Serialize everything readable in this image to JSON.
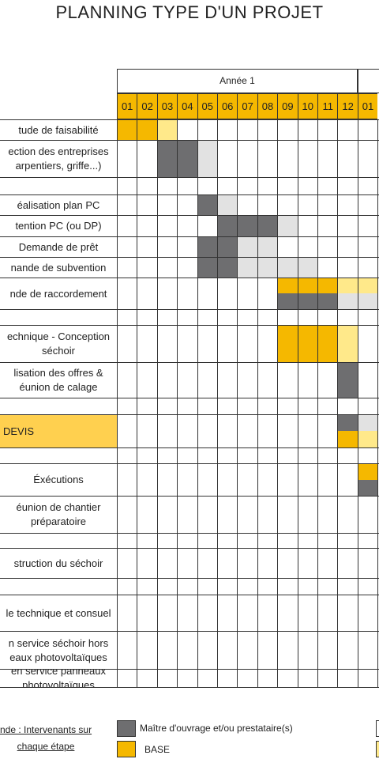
{
  "title": "PLANNING TYPE D'UN PROJET",
  "year_label": "Année 1",
  "months": [
    "01",
    "02",
    "03",
    "04",
    "05",
    "06",
    "07",
    "08",
    "09",
    "10",
    "11",
    "12",
    "01"
  ],
  "colors": {
    "owner": "#6e6e70",
    "base": "#f5b800",
    "light_owner": "#e2e2e2",
    "light_base": "#ffe98a",
    "devis": "#ffd04f"
  },
  "rows": [
    {
      "label": "tude de faisabilité",
      "cells": {
        "1": "base",
        "2": "base",
        "3": "light_base"
      }
    },
    {
      "label": "ection des entreprises\narpentiers, griffe...)",
      "cells": {
        "3": "owner",
        "4": "owner",
        "5": "light_owner"
      }
    },
    {
      "label": "",
      "cells": {}
    },
    {
      "label": "éalisation plan PC",
      "cells": {
        "5": "owner",
        "6": "light_owner"
      }
    },
    {
      "label": "tention PC (ou DP)",
      "cells": {
        "6": "owner",
        "7": "owner",
        "8": "owner",
        "9": "light_owner"
      }
    },
    {
      "label": "Demande de prêt",
      "cells": {
        "5": "owner",
        "6": "owner",
        "7": "light_owner",
        "8": "light_owner"
      }
    },
    {
      "label": "nande de subvention",
      "cells": {
        "5": "owner",
        "6": "owner",
        "7": "light_owner",
        "8": "light_owner",
        "9": "light_owner",
        "10": "light_owner"
      }
    },
    {
      "label": "nde de raccordement",
      "cells": {
        "9": "split_base_owner",
        "10": "split_base_owner",
        "11": "split_base_owner",
        "12": "split_lightbase_lightowner",
        "13": "split_lightbase_lightowner"
      }
    },
    {
      "label": "",
      "cells": {}
    },
    {
      "label": "echnique - Conception\nséchoir",
      "cells": {
        "9": "base",
        "10": "base",
        "11": "base",
        "12": "light_base"
      }
    },
    {
      "label": "lisation des offres &\néunion de calage",
      "cells": {
        "12": "owner"
      }
    },
    {
      "label": "",
      "cells": {}
    },
    {
      "label": "DEVIS",
      "highlight": true,
      "cells": {
        "12": "split_owner_base",
        "13": "split_lightowner_lightbase"
      }
    },
    {
      "label": "",
      "cells": {}
    },
    {
      "label": "Éxécutions",
      "cells": {
        "13": "split_base_owner"
      }
    },
    {
      "label": "éunion de chantier\npréparatoire",
      "cells": {}
    },
    {
      "label": "",
      "cells": {}
    },
    {
      "label": "struction du séchoir",
      "cells": {}
    },
    {
      "label": "",
      "cells": {}
    },
    {
      "label": "le technique et consuel",
      "cells": {}
    },
    {
      "label": "n service séchoir hors\neaux photovoltaïques",
      "cells": {}
    },
    {
      "label": "en service panneaux\nphotovoltaïques",
      "cells": {}
    }
  ],
  "legend": {
    "title": "nde : Intervenants sur\nchaque étape",
    "owner_label": "Maître d'ouvrage et/ou prestataire(s)",
    "base_label": "BASE"
  }
}
